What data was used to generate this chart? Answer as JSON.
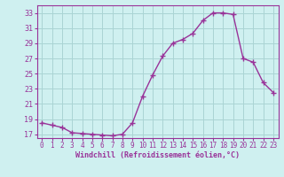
{
  "x": [
    0,
    1,
    2,
    3,
    4,
    5,
    6,
    7,
    8,
    9,
    10,
    11,
    12,
    13,
    14,
    15,
    16,
    17,
    18,
    19,
    20,
    21,
    22,
    23
  ],
  "y": [
    18.5,
    18.2,
    17.9,
    17.2,
    17.1,
    17.0,
    16.9,
    16.8,
    17.0,
    18.5,
    22.0,
    24.8,
    27.3,
    29.0,
    29.5,
    30.3,
    32.0,
    33.0,
    33.0,
    32.8,
    27.0,
    26.5,
    23.8,
    22.5
  ],
  "line_color": "#993399",
  "marker": "+",
  "marker_size": 4,
  "marker_linewidth": 1.0,
  "bg_color": "#cff0f0",
  "grid_color": "#aad4d4",
  "xlabel": "Windchill (Refroidissement éolien,°C)",
  "xlabel_color": "#993399",
  "tick_color": "#993399",
  "label_color": "#993399",
  "ylim": [
    16.5,
    34.0
  ],
  "xlim": [
    -0.5,
    23.5
  ],
  "yticks": [
    17,
    19,
    21,
    23,
    25,
    27,
    29,
    31,
    33
  ],
  "xticks": [
    0,
    1,
    2,
    3,
    4,
    5,
    6,
    7,
    8,
    9,
    10,
    11,
    12,
    13,
    14,
    15,
    16,
    17,
    18,
    19,
    20,
    21,
    22,
    23
  ],
  "linewidth": 1.0
}
